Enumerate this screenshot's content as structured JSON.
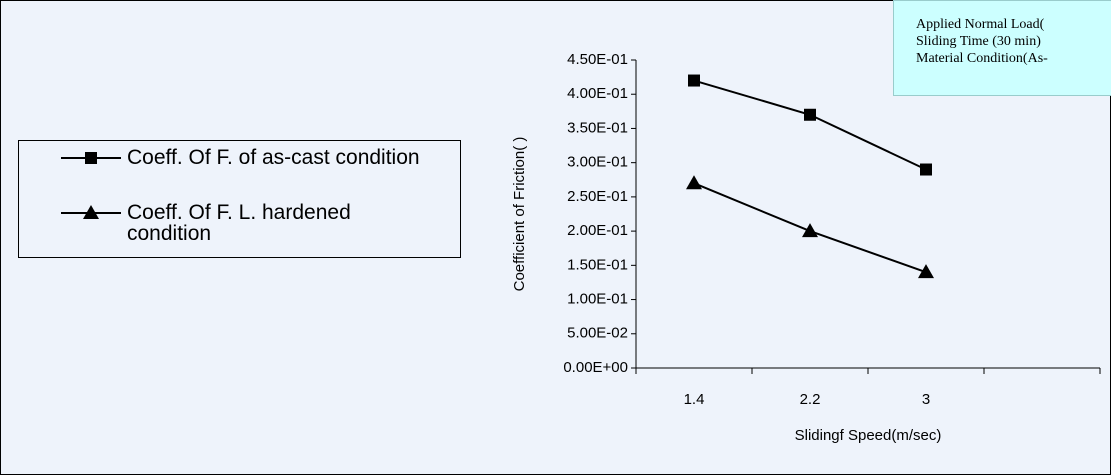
{
  "chart_data": {
    "type": "line",
    "x_label": "Slidingf Speed(m/sec)",
    "y_label": "Coefficient of Friction(  )",
    "categories": [
      "1.4",
      "2.2",
      "3",
      null
    ],
    "series": [
      {
        "name": "Coeff. Of F. of as-cast condition",
        "color": "#000000",
        "marker": "square",
        "values": [
          0.42,
          0.37,
          0.29,
          null
        ]
      },
      {
        "name": "Coeff. Of F. L. hardened condition",
        "color": "#000000",
        "marker": "triangle",
        "values": [
          0.27,
          0.2,
          0.14,
          null
        ]
      }
    ],
    "ylim": [
      0,
      0.45
    ],
    "yticks": [
      {
        "value": 0,
        "label": "0.00E+00"
      },
      {
        "value": 0.05,
        "label": "5.00E-02"
      },
      {
        "value": 0.1,
        "label": "1.00E-01"
      },
      {
        "value": 0.15,
        "label": "1.50E-01"
      },
      {
        "value": 0.2,
        "label": "2.00E-01"
      },
      {
        "value": 0.25,
        "label": "2.50E-01"
      },
      {
        "value": 0.3,
        "label": "3.00E-01"
      },
      {
        "value": 0.35,
        "label": "3.50E-01"
      },
      {
        "value": 0.4,
        "label": "4.00E-01"
      },
      {
        "value": 0.45,
        "label": "4.50E-01"
      }
    ],
    "grid": false,
    "legend": "left",
    "annotations": [
      "Applied Normal Load(",
      "Sliding Time (30 min)",
      "Material Condition(As-"
    ]
  }
}
